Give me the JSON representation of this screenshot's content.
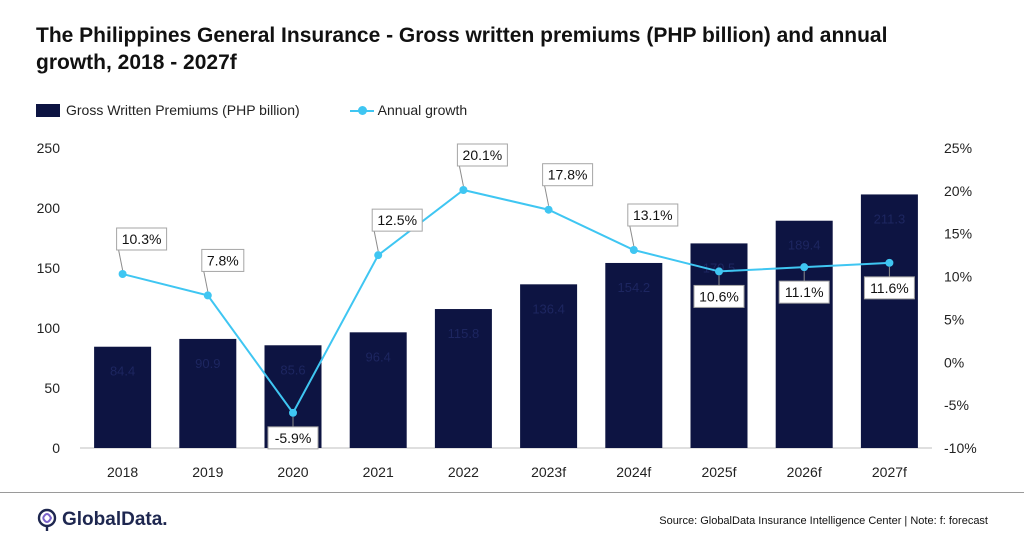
{
  "title": "The Philippines General Insurance - Gross written premiums (PHP billion) and annual growth, 2018 - 2027f",
  "colors": {
    "bar": "#0d1442",
    "line": "#3fc6f2",
    "axis": "#bfbfbf"
  },
  "chart_data": {
    "type": "bar",
    "categories": [
      "2018",
      "2019",
      "2020",
      "2021",
      "2022",
      "2023f",
      "2024f",
      "2025f",
      "2026f",
      "2027f"
    ],
    "series": [
      {
        "name": "Gross Written Premiums (PHP billion)",
        "type": "bar",
        "axis": "left",
        "values": [
          84.4,
          90.9,
          85.6,
          96.4,
          115.8,
          136.4,
          154.2,
          170.5,
          189.4,
          211.3
        ]
      },
      {
        "name": "Annual growth",
        "type": "line",
        "axis": "right",
        "values": [
          10.3,
          7.8,
          -5.9,
          12.5,
          20.1,
          17.8,
          13.1,
          10.6,
          11.1,
          11.6
        ]
      }
    ],
    "bar_labels": [
      "84.4",
      "90.9",
      "85.6",
      "96.4",
      "115.8",
      "136.4",
      "154.2",
      "170.5",
      "189.4",
      "211.3"
    ],
    "line_labels": [
      "10.3%",
      "7.8%",
      "-5.9%",
      "12.5%",
      "20.1%",
      "17.8%",
      "13.1%",
      "10.6%",
      "11.1%",
      "11.6%"
    ],
    "label_side": [
      "above",
      "above",
      "below",
      "above",
      "above",
      "above",
      "above",
      "below",
      "below",
      "below"
    ],
    "y_left": {
      "min": 0,
      "max": 250,
      "ticks": [
        0,
        50,
        100,
        150,
        200,
        250
      ]
    },
    "y_right": {
      "min": -10,
      "max": 25,
      "ticks": [
        "-10%",
        "-5%",
        "0%",
        "5%",
        "10%",
        "15%",
        "20%",
        "25%"
      ]
    },
    "legend": {
      "position": "top-left"
    },
    "grid": false
  },
  "footer": {
    "logo_text": "GlobalData.",
    "source": "Source: GlobalData Insurance Intelligence Center | Note: f: forecast"
  }
}
